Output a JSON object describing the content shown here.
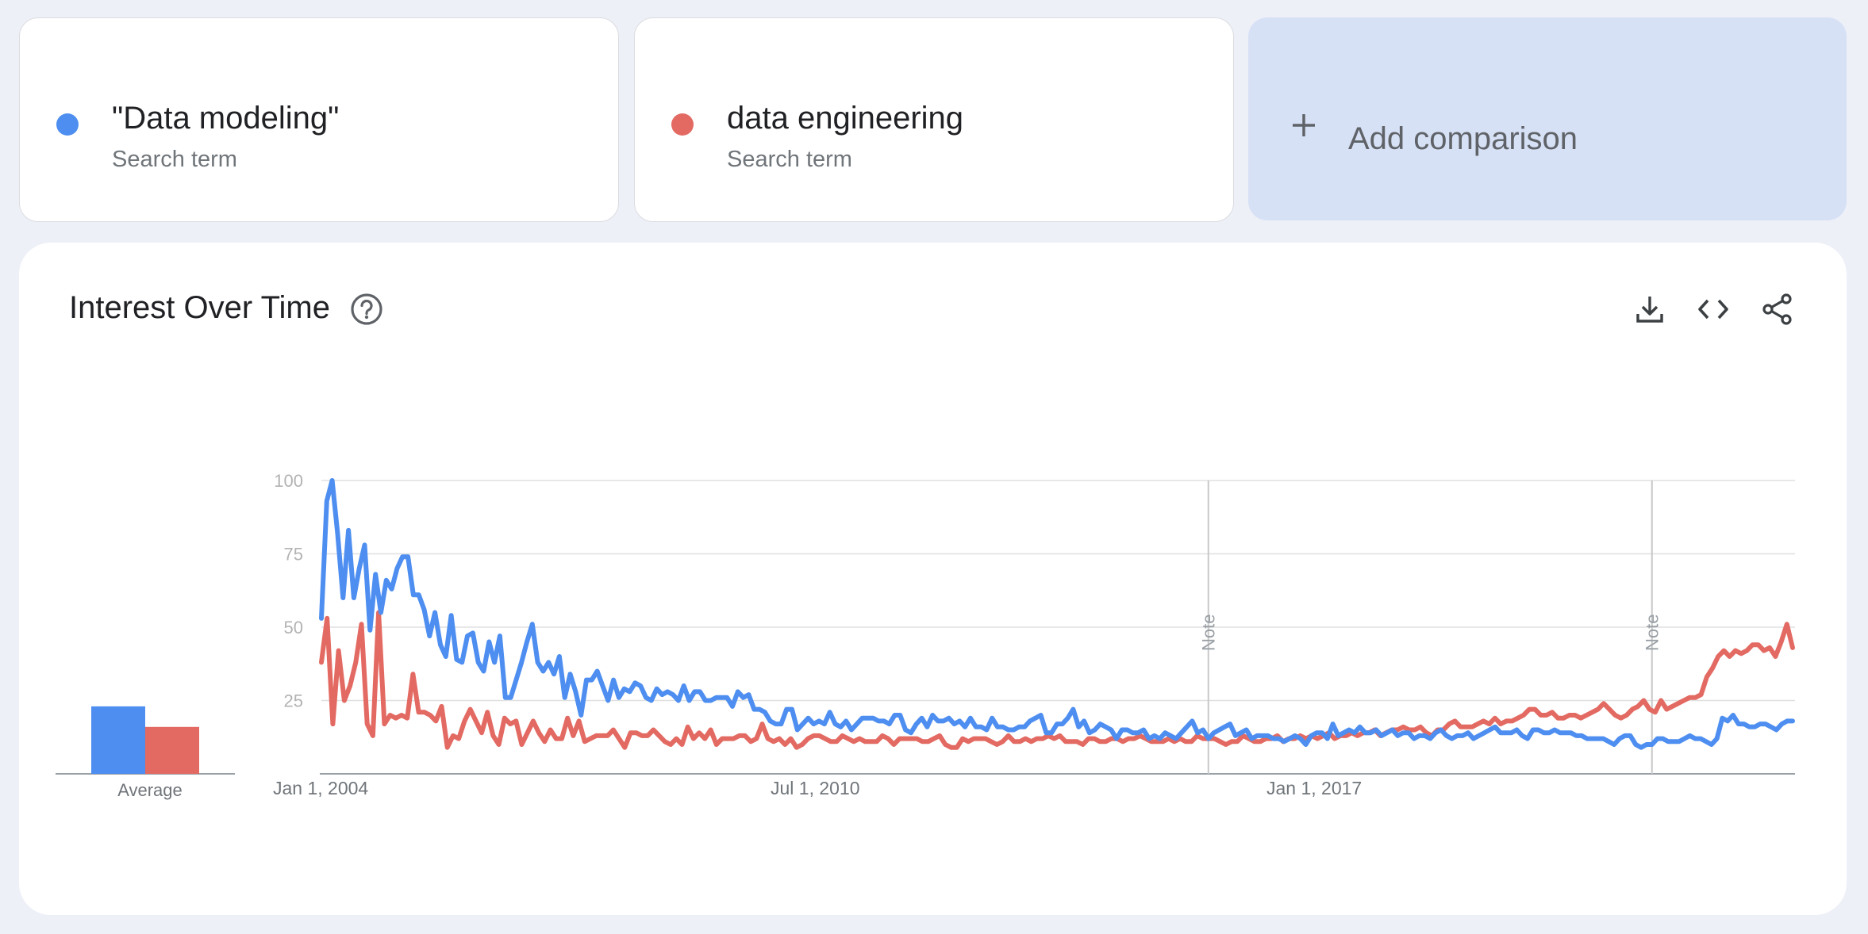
{
  "terms": [
    {
      "name": "\"Data modeling\"",
      "type": "Search term",
      "color": "#4d8ef0"
    },
    {
      "name": "data engineering",
      "type": "Search term",
      "color": "#e36a62"
    }
  ],
  "add_comparison": {
    "label": "Add comparison"
  },
  "chart_header": {
    "title": "Interest Over Time"
  },
  "icons": {
    "help": "help-circle-icon",
    "download": "download-icon",
    "embed": "code-embed-icon",
    "share": "share-icon"
  },
  "chart_data": [
    {
      "type": "bar",
      "categories": [
        "Average"
      ],
      "series": [
        {
          "name": "\"Data modeling\"",
          "values": [
            23
          ],
          "color": "#4d8ef0"
        },
        {
          "name": "data engineering",
          "values": [
            16
          ],
          "color": "#e36a62"
        }
      ],
      "ylim": [
        0,
        100
      ]
    },
    {
      "type": "line",
      "x_range": [
        "2004-01-01",
        "2023-12-01"
      ],
      "x_ticks": [
        "Jan 1, 2004",
        "Jul 1, 2010",
        "Jan 1, 2017"
      ],
      "y_ticks": [
        100,
        75,
        50,
        25
      ],
      "ylim": [
        0,
        100
      ],
      "grid": true,
      "annotations": [
        {
          "label": "Note",
          "date": "2016-01-01"
        },
        {
          "label": "Note",
          "date": "2022-01-01"
        }
      ],
      "series": [
        {
          "name": "\"Data modeling\"",
          "color": "#4d8ef0",
          "start": "2004-01",
          "step": "month",
          "values": [
            53,
            93,
            100,
            82,
            60,
            83,
            60,
            70,
            78,
            49,
            68,
            55,
            66,
            63,
            70,
            74,
            74,
            61,
            61,
            56,
            47,
            55,
            44,
            40,
            54,
            39,
            38,
            47,
            48,
            38,
            35,
            45,
            38,
            47,
            26,
            26,
            32,
            38,
            45,
            51,
            38,
            35,
            38,
            34,
            40,
            26,
            34,
            28,
            20,
            32,
            32,
            35,
            30,
            25,
            32,
            26,
            29,
            28,
            31,
            30,
            26,
            25,
            29,
            27,
            28,
            27,
            25,
            30,
            25,
            28,
            28,
            25,
            25,
            26,
            26,
            26,
            23,
            28,
            26,
            27,
            22,
            22,
            21,
            18,
            17,
            17,
            22,
            22,
            15,
            17,
            19,
            17,
            18,
            17,
            21,
            17,
            16,
            18,
            15,
            17,
            19,
            19,
            19,
            18,
            18,
            17,
            20,
            20,
            15,
            14,
            17,
            19,
            16,
            20,
            18,
            18,
            19,
            17,
            18,
            16,
            19,
            16,
            16,
            15,
            19,
            16,
            16,
            15,
            15,
            16,
            16,
            18,
            19,
            20,
            14,
            14,
            17,
            17,
            19,
            22,
            16,
            18,
            14,
            15,
            17,
            16,
            15,
            12,
            15,
            15,
            14,
            14,
            15,
            12,
            13,
            12,
            14,
            13,
            12,
            14,
            16,
            18,
            14,
            15,
            12,
            14,
            15,
            16,
            17,
            13,
            14,
            15,
            12,
            13,
            13,
            13,
            12,
            12,
            11,
            12,
            13,
            12,
            10,
            13,
            14,
            14,
            12,
            17,
            13,
            14,
            15,
            14,
            16,
            14,
            14,
            15,
            13,
            14,
            15,
            13,
            14,
            14,
            12,
            13,
            13,
            12,
            14,
            15,
            13,
            12,
            13,
            13,
            14,
            12,
            13,
            14,
            15,
            16,
            14,
            14,
            14,
            15,
            13,
            12,
            15,
            15,
            14,
            14,
            15,
            14,
            14,
            14,
            13,
            13,
            12,
            12,
            12,
            12,
            11,
            10,
            12,
            13,
            13,
            10,
            9,
            10,
            10,
            12,
            12,
            11,
            11,
            11,
            12,
            13,
            12,
            12,
            11,
            10,
            12,
            19,
            18,
            20,
            17,
            17,
            16,
            16,
            17,
            17,
            16,
            15,
            17,
            18,
            18
          ]
        },
        {
          "name": "data engineering",
          "color": "#e36a62",
          "start": "2004-01",
          "step": "month",
          "values": [
            38,
            53,
            17,
            42,
            25,
            30,
            38,
            51,
            17,
            13,
            55,
            17,
            20,
            19,
            20,
            19,
            34,
            21,
            21,
            20,
            18,
            23,
            9,
            13,
            12,
            18,
            22,
            18,
            14,
            21,
            13,
            10,
            19,
            17,
            18,
            10,
            14,
            18,
            14,
            11,
            15,
            12,
            12,
            19,
            13,
            18,
            11,
            12,
            13,
            13,
            13,
            15,
            12,
            9,
            14,
            14,
            13,
            13,
            15,
            13,
            11,
            10,
            12,
            10,
            16,
            12,
            14,
            12,
            15,
            10,
            12,
            12,
            12,
            13,
            13,
            11,
            12,
            17,
            12,
            11,
            12,
            10,
            12,
            9,
            10,
            12,
            13,
            13,
            12,
            11,
            11,
            13,
            12,
            11,
            12,
            11,
            11,
            11,
            13,
            12,
            10,
            12,
            12,
            12,
            12,
            11,
            11,
            12,
            13,
            10,
            9,
            9,
            12,
            11,
            12,
            12,
            12,
            11,
            10,
            11,
            13,
            11,
            11,
            12,
            11,
            12,
            12,
            13,
            12,
            13,
            11,
            11,
            11,
            10,
            12,
            12,
            11,
            11,
            12,
            12,
            11,
            12,
            12,
            13,
            12,
            11,
            11,
            11,
            12,
            11,
            12,
            11,
            11,
            13,
            12,
            12,
            12,
            11,
            10,
            11,
            11,
            13,
            12,
            11,
            11,
            12,
            12,
            13,
            11,
            12,
            12,
            13,
            12,
            13,
            12,
            13,
            14,
            12,
            13,
            13,
            14,
            13,
            14,
            14,
            15,
            13,
            14,
            15,
            15,
            16,
            15,
            15,
            16,
            14,
            13,
            15,
            15,
            17,
            18,
            16,
            16,
            16,
            17,
            18,
            17,
            19,
            17,
            18,
            18,
            19,
            20,
            22,
            22,
            20,
            20,
            21,
            19,
            19,
            20,
            20,
            19,
            20,
            21,
            22,
            24,
            22,
            20,
            19,
            20,
            22,
            23,
            25,
            22,
            21,
            25,
            22,
            23,
            24,
            25,
            26,
            26,
            27,
            33,
            36,
            40,
            42,
            40,
            42,
            41,
            42,
            44,
            44,
            42,
            43,
            40,
            45,
            51,
            43
          ]
        }
      ]
    }
  ]
}
